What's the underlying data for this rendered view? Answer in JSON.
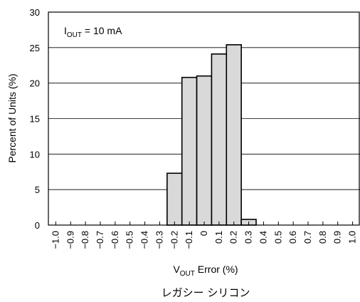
{
  "chart_data": {
    "type": "bar",
    "title": "",
    "xlabel": {
      "main": "V",
      "sub": "OUT",
      "rest": " Error (%)"
    },
    "ylabel": "Percent of Units (%)",
    "ylim": [
      0,
      30
    ],
    "yticks": [
      "0",
      "5",
      "10",
      "15",
      "20",
      "25",
      "30"
    ],
    "categories": [
      "−1.0",
      "−0.9",
      "−0.8",
      "−0.7",
      "−0.6",
      "−0.5",
      "−0.4",
      "−0.3",
      "−0.2",
      "−0.1",
      "0",
      "0.1",
      "0.2",
      "0.3",
      "0.4",
      "0.5",
      "0.6",
      "0.7",
      "0.8",
      "0.9",
      "1.0"
    ],
    "bins": [
      {
        "x": -0.2,
        "value": 7.3
      },
      {
        "x": -0.1,
        "value": 20.8
      },
      {
        "x": 0.0,
        "value": 21.0
      },
      {
        "x": 0.1,
        "value": 24.1
      },
      {
        "x": 0.2,
        "value": 25.4
      },
      {
        "x": 0.3,
        "value": 0.8
      }
    ],
    "annotation": {
      "main": "I",
      "sub": "OUT",
      "rest": " = 10 mA"
    },
    "grid": "horizontal",
    "bar_fill": "#d9d9d9",
    "bar_stroke": "#000000"
  },
  "caption": "レガシー シリコン"
}
